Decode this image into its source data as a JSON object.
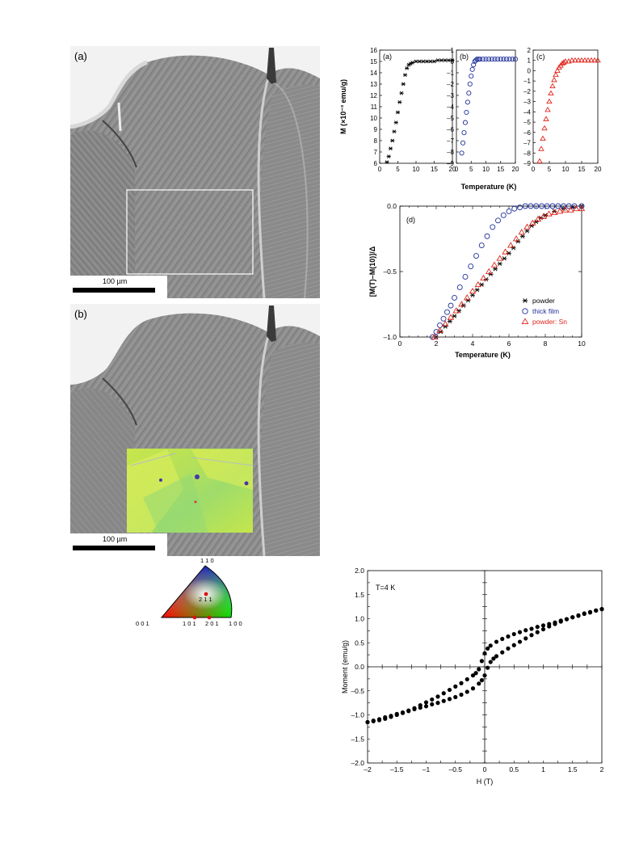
{
  "micrographs": {
    "a": {
      "letter": "(a)",
      "scale_bar": "100 µm"
    },
    "b": {
      "letter": "(b)",
      "scale_bar": "100 µm"
    }
  },
  "ipf_triangle": {
    "labels": {
      "top": "1 1 0",
      "left": "0 0 1",
      "right": "1 0 0",
      "p211": "2 1 1",
      "p101": "1 0 1",
      "p201": "2 0 1"
    }
  },
  "chart_data": [
    {
      "type": "scatter",
      "panel": "(a)",
      "ylabel": "M (×10⁻³ emu/g)",
      "xlabel": "Temperature (K)",
      "xlim": [
        0,
        20
      ],
      "ylim": [
        6,
        16
      ],
      "xticks": [
        0,
        5,
        10,
        15,
        20
      ],
      "yticks": [
        6,
        7,
        8,
        9,
        10,
        11,
        12,
        13,
        14,
        15,
        16
      ],
      "marker": "asterisk",
      "color": "#000000",
      "x": [
        2,
        2.5,
        3,
        3.5,
        4,
        4.5,
        5,
        5.5,
        6,
        6.5,
        7,
        7.5,
        8,
        8.5,
        9,
        10,
        11,
        12,
        13,
        14,
        15,
        16,
        17,
        18,
        19,
        20
      ],
      "y": [
        6.1,
        6.6,
        7.3,
        8.0,
        8.8,
        9.6,
        10.5,
        11.4,
        12.2,
        13.0,
        13.8,
        14.4,
        14.7,
        14.8,
        14.9,
        15.0,
        15.0,
        15.0,
        15.0,
        15.0,
        15.0,
        15.1,
        15.1,
        15.1,
        15.1,
        15.1
      ]
    },
    {
      "type": "scatter",
      "panel": "(b)",
      "xlim": [
        0,
        20
      ],
      "ylim": [
        -9,
        1
      ],
      "xticks": [
        0,
        5,
        10,
        15,
        20
      ],
      "yticks": [
        1,
        0,
        -1,
        -2,
        -3,
        -4,
        -5,
        -6,
        -7,
        -8,
        -9
      ],
      "marker": "circle",
      "color": "#1f2f9a",
      "x": [
        1.8,
        2.2,
        2.6,
        3.0,
        3.4,
        3.8,
        4.2,
        4.6,
        5.0,
        5.4,
        5.8,
        6.2,
        6.6,
        7.0,
        7.5,
        8,
        9,
        10,
        11,
        12,
        13,
        14,
        15,
        16,
        17,
        18,
        19,
        20
      ],
      "y": [
        -8.1,
        -7.2,
        -6.3,
        -5.4,
        -4.5,
        -3.6,
        -2.8,
        -2.0,
        -1.3,
        -0.7,
        -0.3,
        0.0,
        0.1,
        0.2,
        0.2,
        0.2,
        0.2,
        0.2,
        0.2,
        0.2,
        0.2,
        0.2,
        0.2,
        0.2,
        0.2,
        0.2,
        0.2,
        0.2
      ]
    },
    {
      "type": "scatter",
      "panel": "(c)",
      "xlim": [
        0,
        20
      ],
      "ylim": [
        -9,
        2
      ],
      "xticks": [
        0,
        5,
        10,
        15,
        20
      ],
      "yticks": [
        2,
        1,
        0,
        -1,
        -2,
        -3,
        -4,
        -5,
        -6,
        -7,
        -8,
        -9
      ],
      "marker": "triangle",
      "color": "#e0251b",
      "x": [
        2,
        2.5,
        3,
        3.5,
        4,
        4.5,
        5,
        5.5,
        6,
        6.5,
        7,
        7.5,
        8,
        8.5,
        9,
        9.5,
        10,
        11,
        12,
        13,
        14,
        15,
        16,
        17,
        18,
        19,
        20
      ],
      "y": [
        -8.8,
        -7.6,
        -6.6,
        -5.6,
        -4.7,
        -3.8,
        -3.0,
        -2.2,
        -1.5,
        -0.9,
        -0.4,
        0.0,
        0.3,
        0.5,
        0.7,
        0.8,
        0.9,
        0.9,
        1.0,
        1.0,
        1.0,
        1.0,
        1.0,
        1.0,
        1.0,
        1.0,
        1.0
      ]
    },
    {
      "type": "scatter",
      "panel": "(d)",
      "ylabel": "[M(T)–M(10)]/Δ",
      "xlabel": "Temperature (K)",
      "xlim": [
        0,
        10
      ],
      "ylim": [
        -1.0,
        0.0
      ],
      "xticks": [
        0,
        2,
        4,
        6,
        8,
        10
      ],
      "yticks": [
        0.0,
        -0.5,
        -1.0
      ],
      "ytick_labels": [
        "0.0",
        "–0.5",
        "–1.0"
      ],
      "legend_position": "lower-right",
      "series": [
        {
          "name": "powder",
          "marker": "asterisk",
          "color": "#000000",
          "x": [
            2.0,
            2.25,
            2.5,
            2.75,
            3.0,
            3.25,
            3.5,
            3.75,
            4.0,
            4.25,
            4.5,
            4.75,
            5.0,
            5.25,
            5.5,
            5.75,
            6.0,
            6.25,
            6.5,
            6.75,
            7.0,
            7.25,
            7.5,
            7.75,
            8.0,
            8.5,
            9.0,
            9.5,
            10.0
          ],
          "y": [
            -1.0,
            -0.96,
            -0.92,
            -0.88,
            -0.84,
            -0.8,
            -0.76,
            -0.72,
            -0.68,
            -0.64,
            -0.6,
            -0.56,
            -0.52,
            -0.48,
            -0.44,
            -0.4,
            -0.36,
            -0.32,
            -0.27,
            -0.23,
            -0.19,
            -0.15,
            -0.12,
            -0.09,
            -0.07,
            -0.04,
            -0.02,
            -0.01,
            0.0
          ]
        },
        {
          "name": "thick film",
          "marker": "circle",
          "color": "#1f2f9a",
          "x": [
            1.8,
            2.0,
            2.2,
            2.4,
            2.6,
            2.8,
            3.0,
            3.3,
            3.6,
            3.9,
            4.2,
            4.5,
            4.8,
            5.1,
            5.4,
            5.7,
            6.0,
            6.3,
            6.6,
            6.9,
            7.2,
            7.5,
            7.8,
            8.1,
            8.4,
            8.7,
            9.0,
            9.3,
            9.6,
            10.0
          ],
          "y": [
            -1.0,
            -0.96,
            -0.91,
            -0.86,
            -0.81,
            -0.76,
            -0.7,
            -0.62,
            -0.54,
            -0.46,
            -0.38,
            -0.3,
            -0.23,
            -0.16,
            -0.11,
            -0.07,
            -0.04,
            -0.02,
            -0.01,
            0.0,
            0.0,
            0.0,
            0.0,
            0.0,
            0.0,
            0.0,
            0.0,
            0.0,
            0.0,
            0.0
          ]
        },
        {
          "name": "powder: Sn",
          "marker": "triangle",
          "color": "#e0251b",
          "x": [
            1.9,
            2.2,
            2.5,
            2.8,
            3.1,
            3.4,
            3.7,
            4.0,
            4.3,
            4.6,
            4.9,
            5.2,
            5.5,
            5.8,
            6.1,
            6.4,
            6.7,
            7.0,
            7.3,
            7.6,
            7.9,
            8.2,
            8.5,
            8.8,
            9.1,
            9.4,
            9.7,
            10.0
          ],
          "y": [
            -1.0,
            -0.95,
            -0.9,
            -0.85,
            -0.8,
            -0.75,
            -0.7,
            -0.65,
            -0.6,
            -0.55,
            -0.5,
            -0.45,
            -0.4,
            -0.35,
            -0.3,
            -0.25,
            -0.2,
            -0.16,
            -0.13,
            -0.1,
            -0.08,
            -0.06,
            -0.05,
            -0.04,
            -0.03,
            -0.03,
            -0.02,
            -0.02
          ]
        }
      ]
    },
    {
      "type": "scatter",
      "panel": "hysteresis",
      "annotation": "T=4 K",
      "xlabel": "H (T)",
      "ylabel": "Moment (emu/g)",
      "xlim": [
        -2,
        2
      ],
      "ylim": [
        -2.0,
        2.0
      ],
      "xticks": [
        -2,
        -1.5,
        -1,
        -0.5,
        0,
        0.5,
        1,
        1.5,
        2
      ],
      "xtick_labels": [
        "–2",
        "–1.5",
        "–1",
        "–0.5",
        "0",
        "0.5",
        "1",
        "1.5",
        "2"
      ],
      "yticks": [
        2.0,
        1.5,
        1.0,
        0.5,
        0.0,
        -0.5,
        -1.0,
        -1.5,
        -2.0
      ],
      "ytick_labels": [
        "2.0",
        "1.5",
        "1.0",
        "0.5",
        "0.0",
        "–0.5",
        "–1.0",
        "–1.5",
        "–2.0"
      ],
      "marker": "filled-circle",
      "color": "#000000",
      "series": [
        {
          "name": "",
          "branch": "descending",
          "x": [
            2.0,
            1.9,
            1.8,
            1.7,
            1.6,
            1.5,
            1.4,
            1.3,
            1.2,
            1.1,
            1.0,
            0.9,
            0.8,
            0.7,
            0.6,
            0.5,
            0.4,
            0.3,
            0.2,
            0.1,
            0.05,
            0.0,
            -0.05,
            -0.1,
            -0.15,
            -0.2,
            -0.3,
            -0.4,
            -0.5,
            -0.6,
            -0.7,
            -0.8,
            -0.9,
            -1.0,
            -1.1,
            -1.2,
            -1.3,
            -1.4,
            -1.5,
            -1.6,
            -1.7,
            -1.8,
            -1.9,
            -2.0
          ],
          "y": [
            1.2,
            1.17,
            1.13,
            1.1,
            1.06,
            1.03,
            0.99,
            0.96,
            0.92,
            0.89,
            0.86,
            0.83,
            0.79,
            0.76,
            0.72,
            0.68,
            0.63,
            0.58,
            0.52,
            0.44,
            0.38,
            0.28,
            0.12,
            -0.05,
            -0.13,
            -0.18,
            -0.26,
            -0.34,
            -0.41,
            -0.48,
            -0.55,
            -0.62,
            -0.68,
            -0.74,
            -0.8,
            -0.86,
            -0.91,
            -0.96,
            -1.0,
            -1.04,
            -1.08,
            -1.11,
            -1.13,
            -1.15
          ]
        },
        {
          "name": "",
          "branch": "ascending",
          "x": [
            -2.0,
            -1.9,
            -1.8,
            -1.7,
            -1.6,
            -1.5,
            -1.4,
            -1.3,
            -1.2,
            -1.1,
            -1.0,
            -0.9,
            -0.8,
            -0.7,
            -0.6,
            -0.5,
            -0.4,
            -0.3,
            -0.2,
            -0.1,
            -0.05,
            0.0,
            0.05,
            0.1,
            0.15,
            0.2,
            0.3,
            0.4,
            0.5,
            0.6,
            0.7,
            0.8,
            0.9,
            1.0,
            1.1,
            1.2,
            1.3,
            1.4,
            1.5,
            1.6,
            1.7,
            1.8,
            1.9,
            2.0
          ],
          "y": [
            -1.15,
            -1.12,
            -1.09,
            -1.05,
            -1.02,
            -0.98,
            -0.95,
            -0.92,
            -0.88,
            -0.85,
            -0.82,
            -0.78,
            -0.75,
            -0.71,
            -0.67,
            -0.63,
            -0.58,
            -0.52,
            -0.45,
            -0.35,
            -0.28,
            -0.18,
            -0.02,
            0.1,
            0.17,
            0.22,
            0.3,
            0.38,
            0.45,
            0.52,
            0.59,
            0.66,
            0.72,
            0.78,
            0.84,
            0.89,
            0.94,
            0.99,
            1.03,
            1.07,
            1.11,
            1.14,
            1.17,
            1.2
          ]
        }
      ]
    }
  ]
}
